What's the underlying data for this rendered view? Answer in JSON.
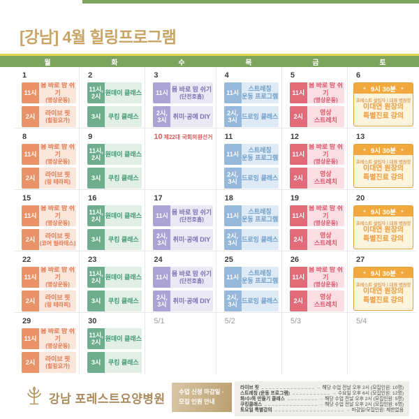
{
  "title": {
    "prefix": "[강남]",
    "rest": " 4월 힐링프로그램"
  },
  "weekday_header": [
    "월",
    "화",
    "수",
    "목",
    "금",
    "토"
  ],
  "colors": {
    "title_gold": "#c9a467",
    "header_green": "#7ca45d",
    "header_yellow_line": "#e3d44d",
    "monday_orange": "#ea9368",
    "tuesday_green": "#6fae8c",
    "wednesday_purple": "#aba3d4",
    "thursday_blue": "#95b8db",
    "friday_red": "#e26b79",
    "saturday_orange": "#f1a93e",
    "election_red": "#e25c5c",
    "footer_gold": "#ab8b5e"
  },
  "legend_arrow": "→",
  "sparkle": "✦",
  "calendar": {
    "weeks": [
      {
        "days": [
          {
            "date": "1",
            "style": "mon",
            "blocks": [
              {
                "time": "11시",
                "lines": [
                  "몸 바로 맘 쉬기",
                  "(명상운동)"
                ]
              },
              {
                "time": "2시",
                "lines": [
                  "라이브 핏",
                  "(힐링요가)"
                ]
              }
            ]
          },
          {
            "date": "2",
            "style": "tue",
            "blocks": [
              {
                "time": "11시,\n2시",
                "lines": [
                  "원데이 클래스"
                ]
              },
              {
                "time": "3시",
                "lines": [
                  "쿠킹 클래스"
                ]
              }
            ]
          },
          {
            "date": "3",
            "style": "wed",
            "blocks": [
              {
                "time": "11시",
                "lines": [
                  "몸 바로 맘 쉬기",
                  "(단전호흡)"
                ]
              },
              {
                "time": "2시,\n3시",
                "lines": [
                  "취미·공예 DIY"
                ]
              }
            ]
          },
          {
            "date": "4",
            "style": "thu",
            "blocks": [
              {
                "time": "11시",
                "lines": [
                  "스트레칭",
                  "운동 프로그램"
                ]
              },
              {
                "time": "2시,\n3시",
                "lines": [
                  "드로잉 클래스"
                ]
              }
            ]
          },
          {
            "date": "5",
            "style": "fri",
            "blocks": [
              {
                "time": "11시",
                "lines": [
                  "몸 바로 맘 쉬기",
                  "(명상운동)"
                ]
              },
              {
                "time": "2시",
                "lines": [
                  "영상",
                  "스트레치"
                ]
              }
            ]
          },
          {
            "date": "6",
            "style": "sat",
            "special": {
              "time": "9시 30분",
              "subtitle": "포레스트 설립자ㅣ대표 병원장",
              "lines": [
                "이대연 원장의",
                "특별진료 강의"
              ]
            }
          }
        ]
      },
      {
        "days": [
          {
            "date": "8",
            "style": "mon",
            "blocks": [
              {
                "time": "11시",
                "lines": [
                  "몸 바로 맘 쉬기",
                  "(명상운동)"
                ]
              },
              {
                "time": "2시",
                "lines": [
                  "라이브 핏",
                  "(링 테라피)"
                ]
              }
            ]
          },
          {
            "date": "9",
            "style": "tue",
            "blocks": [
              {
                "time": "11시,\n2시",
                "lines": [
                  "원데이 클래스"
                ]
              },
              {
                "time": "3시",
                "lines": [
                  "쿠킹 클래스"
                ]
              }
            ]
          },
          {
            "date": "10",
            "style": "holiday",
            "note": "제22대 국회의원선거"
          },
          {
            "date": "11",
            "style": "thu",
            "blocks": [
              {
                "time": "11시",
                "lines": [
                  "스트레칭",
                  "운동 프로그램"
                ]
              },
              {
                "time": "2시,\n3시",
                "lines": [
                  "드로잉 클래스"
                ]
              }
            ]
          },
          {
            "date": "12",
            "style": "fri",
            "blocks": [
              {
                "time": "11시",
                "lines": [
                  "몸 바로 맘 쉬기",
                  "(명상운동)"
                ]
              },
              {
                "time": "2시",
                "lines": [
                  "영상",
                  "스트레치"
                ]
              }
            ]
          },
          {
            "date": "13",
            "style": "sat",
            "special": {
              "time": "9시 30분",
              "subtitle": "포레스트 설립자ㅣ대표 병원장",
              "lines": [
                "이대연 원장의",
                "특별진료 강의"
              ]
            }
          }
        ]
      },
      {
        "days": [
          {
            "date": "15",
            "style": "mon",
            "blocks": [
              {
                "time": "11시",
                "lines": [
                  "몸 바로 맘 쉬기",
                  "(명상운동)"
                ]
              },
              {
                "time": "2시",
                "lines": [
                  "라이브 핏",
                  "(코어 필라테스)"
                ]
              }
            ]
          },
          {
            "date": "16",
            "style": "tue",
            "blocks": [
              {
                "time": "11시,\n2시",
                "lines": [
                  "원데이 클래스"
                ]
              },
              {
                "time": "3시",
                "lines": [
                  "쿠킹 클래스"
                ]
              }
            ]
          },
          {
            "date": "17",
            "style": "wed",
            "blocks": [
              {
                "time": "11시",
                "lines": [
                  "몸 바로 맘 쉬기",
                  "(단전호흡)"
                ]
              },
              {
                "time": "2시,\n3시",
                "lines": [
                  "취미·공예 DIY"
                ]
              }
            ]
          },
          {
            "date": "18",
            "style": "thu",
            "blocks": [
              {
                "time": "11시",
                "lines": [
                  "스트레칭",
                  "운동 프로그램"
                ]
              },
              {
                "time": "2시,\n3시",
                "lines": [
                  "드로잉 클래스"
                ]
              }
            ]
          },
          {
            "date": "19",
            "style": "fri",
            "blocks": [
              {
                "time": "11시",
                "lines": [
                  "몸 바로 맘 쉬기",
                  "(명상운동)"
                ]
              },
              {
                "time": "2시",
                "lines": [
                  "영상",
                  "스트레치"
                ]
              }
            ]
          },
          {
            "date": "20",
            "style": "sat",
            "special": {
              "time": "9시 30분",
              "subtitle": "포레스트 설립자ㅣ대표 병원장",
              "lines": [
                "이대연 원장의",
                "특별진료 강의"
              ]
            }
          }
        ]
      },
      {
        "days": [
          {
            "date": "22",
            "style": "mon",
            "blocks": [
              {
                "time": "11시",
                "lines": [
                  "몸 바로 맘 쉬기",
                  "(명상운동)"
                ]
              },
              {
                "time": "2시",
                "lines": [
                  "라이브 핏",
                  "(링 테라피)"
                ]
              }
            ]
          },
          {
            "date": "23",
            "style": "tue",
            "blocks": [
              {
                "time": "11시,\n2시",
                "lines": [
                  "원데이 클래스"
                ]
              },
              {
                "time": "3시",
                "lines": [
                  "쿠킹 클래스"
                ]
              }
            ]
          },
          {
            "date": "24",
            "style": "wed",
            "blocks": [
              {
                "time": "11시",
                "lines": [
                  "몸 바로 맘 쉬기",
                  "(단전호흡)"
                ]
              },
              {
                "time": "2시,\n3시",
                "lines": [
                  "취미·공예 DIY"
                ]
              }
            ]
          },
          {
            "date": "25",
            "style": "thu",
            "blocks": [
              {
                "time": "11시",
                "lines": [
                  "스트레칭",
                  "운동 프로그램"
                ]
              },
              {
                "time": "2시,\n3시",
                "lines": [
                  "드로잉 클래스"
                ]
              }
            ]
          },
          {
            "date": "26",
            "style": "fri",
            "blocks": [
              {
                "time": "11시",
                "lines": [
                  "몸 바로 맘 쉬기",
                  "(명상운동)"
                ]
              },
              {
                "time": "2시",
                "lines": [
                  "영상",
                  "스트레치"
                ]
              }
            ]
          },
          {
            "date": "27",
            "style": "sat",
            "special": {
              "time": "9시 30분",
              "subtitle": "포레스트 설립자ㅣ대표 병원장",
              "lines": [
                "이대연 원장의",
                "특별진료 강의"
              ]
            }
          }
        ]
      },
      {
        "days": [
          {
            "date": "29",
            "style": "mon",
            "blocks": [
              {
                "time": "11시",
                "lines": [
                  "몸 바로 맘 쉬기",
                  "(명상운동)"
                ]
              },
              {
                "time": "2시",
                "lines": [
                  "라이브 핏",
                  "(힐링요가)"
                ]
              }
            ]
          },
          {
            "date": "30",
            "style": "tue",
            "blocks": [
              {
                "time": "11시,\n2시",
                "lines": [
                  "원데이 클래스"
                ]
              },
              {
                "time": "3시",
                "lines": [
                  "쿠킹 클래스"
                ]
              }
            ]
          },
          {
            "date": "5/1",
            "style": "next-month"
          },
          {
            "date": "5/2",
            "style": "next-month"
          },
          {
            "date": "5/3",
            "style": "next-month"
          },
          {
            "date": "5/4",
            "style": "next-month"
          }
        ]
      }
    ]
  },
  "footer": {
    "hospital": {
      "name": "강남 포레스트요양병원"
    },
    "notice": {
      "line1": "수업 신청 마감일 ·",
      "line2": "모집 인원 안내"
    },
    "legend": [
      {
        "label": "라이브 핏",
        "value": "해당 수업 전날 오후 2시 (모집인원: 10명)"
      },
      {
        "label": "스트레칭 (운동 프로그램)",
        "value": "수요일 오후 6시 (모집인원: 12명)"
      },
      {
        "label": "화/수/목 만들기 클래스",
        "value": "해당 수업 전날 오후 2시 (모집인원: 5명)"
      },
      {
        "label": "쿠킹클래스",
        "value": "해당 수업 전날 오후 2시 (모집인원: 6명)"
      },
      {
        "label": "토요일 특별강의",
        "value": "마감일/모집인원: 제한없음"
      }
    ]
  }
}
